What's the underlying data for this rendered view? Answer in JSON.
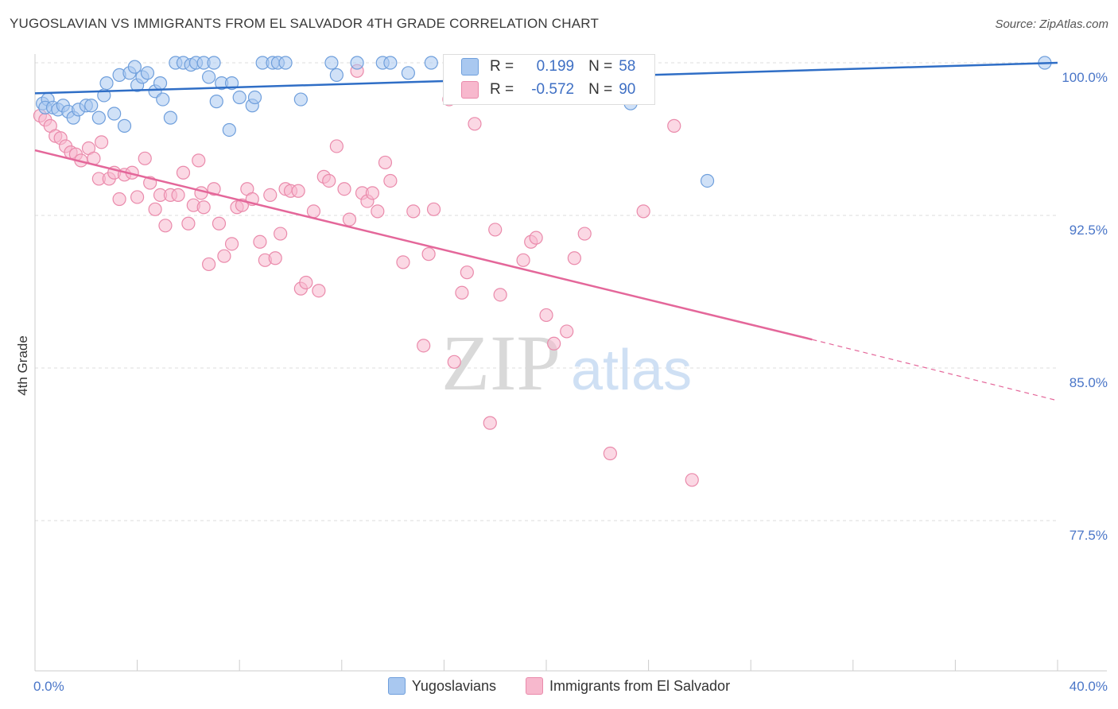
{
  "title": "YUGOSLAVIAN VS IMMIGRANTS FROM EL SALVADOR 4TH GRADE CORRELATION CHART",
  "source": "Source: ZipAtlas.com",
  "watermark": {
    "zip": "ZIP",
    "atlas": "atlas"
  },
  "colors": {
    "blue_fill": "#a9c8f0",
    "blue_stroke": "#6f9fdc",
    "blue_line": "#2f6ec6",
    "pink_fill": "#f7b8cd",
    "pink_stroke": "#ea8aab",
    "pink_line": "#e4679a",
    "grid": "#dddddd",
    "tick_text": "#4a76c8"
  },
  "stats": [
    {
      "r_label": "R =",
      "r_value": "0.199",
      "n_label": "N =",
      "n_value": "58",
      "series": "blue"
    },
    {
      "r_label": "R =",
      "r_value": "-0.572",
      "n_label": "N =",
      "n_value": "90",
      "series": "pink"
    }
  ],
  "legend": [
    {
      "label": "Yugoslavians",
      "series": "blue"
    },
    {
      "label": "Immigrants from El Salvador",
      "series": "pink"
    }
  ],
  "chart_data": {
    "type": "scatter",
    "title": "YUGOSLAVIAN VS IMMIGRANTS FROM EL SALVADOR 4TH GRADE CORRELATION CHART",
    "xlabel": "",
    "ylabel": "4th Grade",
    "xlim": [
      0,
      40
    ],
    "ylim": [
      69.3,
      101.1
    ],
    "x_tick_labels": [
      {
        "value": 0,
        "label": "0.0%"
      },
      {
        "value": 40,
        "label": "40.0%"
      }
    ],
    "y_tick_labels": [
      {
        "value": 100.0,
        "label": "100.0%"
      },
      {
        "value": 92.5,
        "label": "92.5%"
      },
      {
        "value": 85.0,
        "label": "85.0%"
      },
      {
        "value": 77.5,
        "label": "77.5%"
      }
    ],
    "grid": true,
    "legend_position": "bottom",
    "series": [
      {
        "name": "Yugoslavians",
        "color": "blue",
        "trend": {
          "x0": 0,
          "y0": 98.5,
          "x1": 40,
          "y1": 100.0
        },
        "points": [
          [
            0.3,
            98.0
          ],
          [
            0.5,
            98.2
          ],
          [
            0.4,
            97.8
          ],
          [
            0.7,
            97.8
          ],
          [
            0.9,
            97.7
          ],
          [
            1.1,
            97.9
          ],
          [
            1.3,
            97.6
          ],
          [
            1.5,
            97.3
          ],
          [
            1.7,
            97.7
          ],
          [
            2.0,
            97.9
          ],
          [
            2.2,
            97.9
          ],
          [
            2.5,
            97.3
          ],
          [
            2.7,
            98.4
          ],
          [
            2.8,
            99.0
          ],
          [
            3.1,
            97.5
          ],
          [
            3.3,
            99.4
          ],
          [
            3.5,
            96.9
          ],
          [
            3.7,
            99.5
          ],
          [
            3.9,
            99.8
          ],
          [
            4.0,
            98.9
          ],
          [
            4.2,
            99.3
          ],
          [
            4.4,
            99.5
          ],
          [
            4.7,
            98.6
          ],
          [
            4.9,
            99.0
          ],
          [
            5.0,
            98.2
          ],
          [
            5.3,
            97.3
          ],
          [
            5.5,
            100.0
          ],
          [
            5.8,
            100.0
          ],
          [
            6.1,
            99.9
          ],
          [
            6.3,
            100.0
          ],
          [
            6.6,
            100.0
          ],
          [
            6.8,
            99.3
          ],
          [
            7.0,
            100.0
          ],
          [
            7.1,
            98.1
          ],
          [
            7.3,
            99.0
          ],
          [
            7.6,
            96.7
          ],
          [
            7.7,
            99.0
          ],
          [
            8.0,
            98.3
          ],
          [
            8.5,
            97.9
          ],
          [
            8.6,
            98.3
          ],
          [
            8.9,
            100.0
          ],
          [
            9.3,
            100.0
          ],
          [
            9.5,
            100.0
          ],
          [
            9.8,
            100.0
          ],
          [
            10.4,
            98.2
          ],
          [
            11.6,
            100.0
          ],
          [
            11.8,
            99.4
          ],
          [
            12.6,
            100.0
          ],
          [
            13.6,
            100.0
          ],
          [
            13.9,
            100.0
          ],
          [
            14.6,
            99.5
          ],
          [
            15.5,
            100.0
          ],
          [
            17.9,
            99.9
          ],
          [
            18.7,
            98.4
          ],
          [
            22.1,
            100.0
          ],
          [
            23.3,
            98.0
          ],
          [
            26.3,
            94.2
          ],
          [
            39.5,
            100.0
          ]
        ]
      },
      {
        "name": "Immigrants from El Salvador",
        "color": "pink",
        "trend": {
          "x0": 0,
          "y0": 95.7,
          "x1": 30.4,
          "y1": 86.4,
          "dash_x1": 40,
          "dash_y1": 83.4
        },
        "points": [
          [
            0.2,
            97.4
          ],
          [
            0.4,
            97.2
          ],
          [
            0.6,
            96.9
          ],
          [
            0.8,
            96.4
          ],
          [
            1.0,
            96.3
          ],
          [
            1.2,
            95.9
          ],
          [
            1.4,
            95.6
          ],
          [
            1.6,
            95.5
          ],
          [
            1.8,
            95.2
          ],
          [
            2.1,
            95.8
          ],
          [
            2.3,
            95.3
          ],
          [
            2.5,
            94.3
          ],
          [
            2.6,
            96.1
          ],
          [
            2.9,
            94.3
          ],
          [
            3.1,
            94.6
          ],
          [
            3.3,
            93.3
          ],
          [
            3.5,
            94.5
          ],
          [
            3.8,
            94.6
          ],
          [
            4.0,
            93.4
          ],
          [
            4.3,
            95.3
          ],
          [
            4.5,
            94.1
          ],
          [
            4.7,
            92.8
          ],
          [
            4.9,
            93.5
          ],
          [
            5.1,
            92.0
          ],
          [
            5.3,
            93.5
          ],
          [
            5.6,
            93.5
          ],
          [
            5.8,
            94.6
          ],
          [
            6.0,
            92.1
          ],
          [
            6.2,
            93.0
          ],
          [
            6.4,
            95.2
          ],
          [
            6.6,
            92.9
          ],
          [
            6.8,
            90.1
          ],
          [
            7.0,
            93.8
          ],
          [
            7.2,
            92.1
          ],
          [
            7.4,
            90.5
          ],
          [
            7.7,
            91.1
          ],
          [
            7.9,
            92.9
          ],
          [
            8.1,
            93.0
          ],
          [
            8.3,
            93.8
          ],
          [
            8.5,
            93.3
          ],
          [
            8.8,
            91.2
          ],
          [
            9.0,
            90.3
          ],
          [
            9.2,
            93.5
          ],
          [
            9.4,
            90.4
          ],
          [
            9.6,
            91.6
          ],
          [
            9.8,
            93.8
          ],
          [
            10.0,
            93.7
          ],
          [
            10.3,
            93.7
          ],
          [
            10.4,
            88.9
          ],
          [
            10.6,
            89.2
          ],
          [
            10.9,
            92.7
          ],
          [
            11.1,
            88.8
          ],
          [
            11.3,
            94.4
          ],
          [
            11.5,
            94.2
          ],
          [
            11.8,
            95.9
          ],
          [
            12.1,
            93.8
          ],
          [
            12.3,
            92.3
          ],
          [
            12.6,
            99.6
          ],
          [
            12.8,
            93.6
          ],
          [
            13.0,
            93.2
          ],
          [
            13.2,
            93.6
          ],
          [
            13.4,
            92.7
          ],
          [
            13.7,
            95.1
          ],
          [
            13.9,
            94.2
          ],
          [
            14.4,
            90.2
          ],
          [
            14.8,
            92.7
          ],
          [
            15.2,
            86.1
          ],
          [
            15.4,
            90.6
          ],
          [
            15.6,
            92.8
          ],
          [
            16.2,
            98.2
          ],
          [
            16.4,
            85.3
          ],
          [
            16.7,
            88.7
          ],
          [
            16.9,
            89.7
          ],
          [
            17.2,
            97.0
          ],
          [
            17.8,
            82.3
          ],
          [
            18.0,
            91.8
          ],
          [
            18.2,
            88.6
          ],
          [
            19.1,
            90.3
          ],
          [
            19.4,
            91.2
          ],
          [
            19.6,
            91.4
          ],
          [
            20.0,
            87.6
          ],
          [
            20.3,
            86.2
          ],
          [
            20.8,
            86.8
          ],
          [
            21.1,
            90.4
          ],
          [
            22.5,
            80.8
          ],
          [
            23.8,
            92.7
          ],
          [
            25.0,
            96.9
          ],
          [
            25.7,
            79.5
          ],
          [
            21.5,
            91.6
          ],
          [
            6.5,
            93.6
          ]
        ]
      }
    ]
  }
}
